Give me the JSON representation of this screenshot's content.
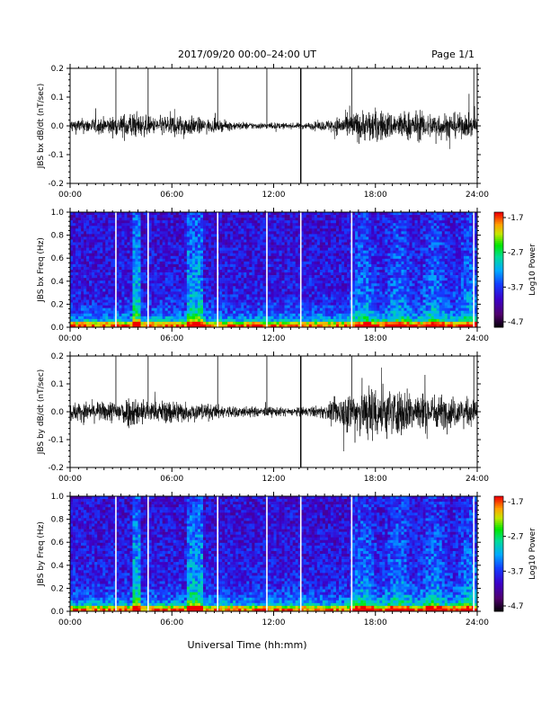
{
  "header": {
    "title": "2017/09/20  00:00–24:00 UT",
    "page": "Page 1/1"
  },
  "xaxis": {
    "label": "Universal Time (hh:mm)",
    "ticks": [
      "00:00",
      "06:00",
      "12:00",
      "18:00",
      "24:00"
    ]
  },
  "colorbar": {
    "label": "Log10 Power",
    "ticks": [
      "-1.7",
      "-2.7",
      "-3.7",
      "-4.7"
    ]
  },
  "chart_data": [
    {
      "type": "line",
      "ylabel": "JBS bx dB/dt (nT/sec)",
      "ylim": [
        -0.2,
        0.2
      ],
      "yticks": [
        "0.2",
        "0.1",
        "0.0",
        "-0.1",
        "-0.2"
      ],
      "xlim_hours": [
        0,
        24
      ],
      "spikes_hours": [
        2.7,
        4.6,
        8.7,
        11.6,
        13.6,
        16.6,
        23.8
      ],
      "envelope": {
        "x_hours": [
          0,
          2,
          3,
          3.5,
          4,
          5,
          6,
          7,
          8,
          9,
          10,
          11,
          12,
          13,
          14,
          15,
          16,
          17,
          18,
          19,
          20,
          21,
          22,
          23,
          24
        ],
        "amplitude": [
          0.02,
          0.025,
          0.03,
          0.045,
          0.035,
          0.025,
          0.035,
          0.03,
          0.02,
          0.015,
          0.012,
          0.01,
          0.01,
          0.008,
          0.01,
          0.015,
          0.03,
          0.045,
          0.05,
          0.04,
          0.045,
          0.04,
          0.04,
          0.035,
          0.03
        ]
      }
    },
    {
      "type": "heatmap",
      "ylabel": "JBS bx Freq (Hz)",
      "ylim": [
        0.0,
        1.0
      ],
      "yticks": [
        "1.0",
        "0.8",
        "0.6",
        "0.4",
        "0.2",
        "0.0"
      ],
      "zlim": [
        -4.7,
        -1.7
      ],
      "gaps_hours": [
        2.7,
        4.6,
        8.7,
        11.6,
        13.6,
        16.6,
        23.8
      ]
    },
    {
      "type": "line",
      "ylabel": "JBS by dB/dt (nT/sec)",
      "ylim": [
        -0.2,
        0.2
      ],
      "yticks": [
        "0.2",
        "0.1",
        "0.0",
        "-0.1",
        "-0.2"
      ],
      "xlim_hours": [
        0,
        24
      ],
      "spikes_hours": [
        2.7,
        4.6,
        8.7,
        11.6,
        13.6,
        16.6,
        23.8
      ],
      "envelope": {
        "x_hours": [
          0,
          2,
          3,
          3.5,
          4,
          5,
          6,
          7,
          8,
          9,
          10,
          11,
          12,
          13,
          14,
          15,
          16,
          17,
          18,
          19,
          20,
          21,
          22,
          23,
          24
        ],
        "amplitude": [
          0.03,
          0.03,
          0.04,
          0.05,
          0.045,
          0.03,
          0.04,
          0.03,
          0.025,
          0.02,
          0.018,
          0.015,
          0.015,
          0.012,
          0.015,
          0.02,
          0.05,
          0.08,
          0.09,
          0.07,
          0.07,
          0.06,
          0.05,
          0.045,
          0.04
        ]
      }
    },
    {
      "type": "heatmap",
      "ylabel": "JBS by Freq (Hz)",
      "ylim": [
        0.0,
        1.0
      ],
      "yticks": [
        "1.0",
        "0.8",
        "0.6",
        "0.4",
        "0.2",
        "0.0"
      ],
      "zlim": [
        -4.7,
        -1.7
      ],
      "gaps_hours": [
        2.7,
        4.6,
        8.7,
        11.6,
        13.6,
        16.6,
        23.8
      ]
    }
  ]
}
